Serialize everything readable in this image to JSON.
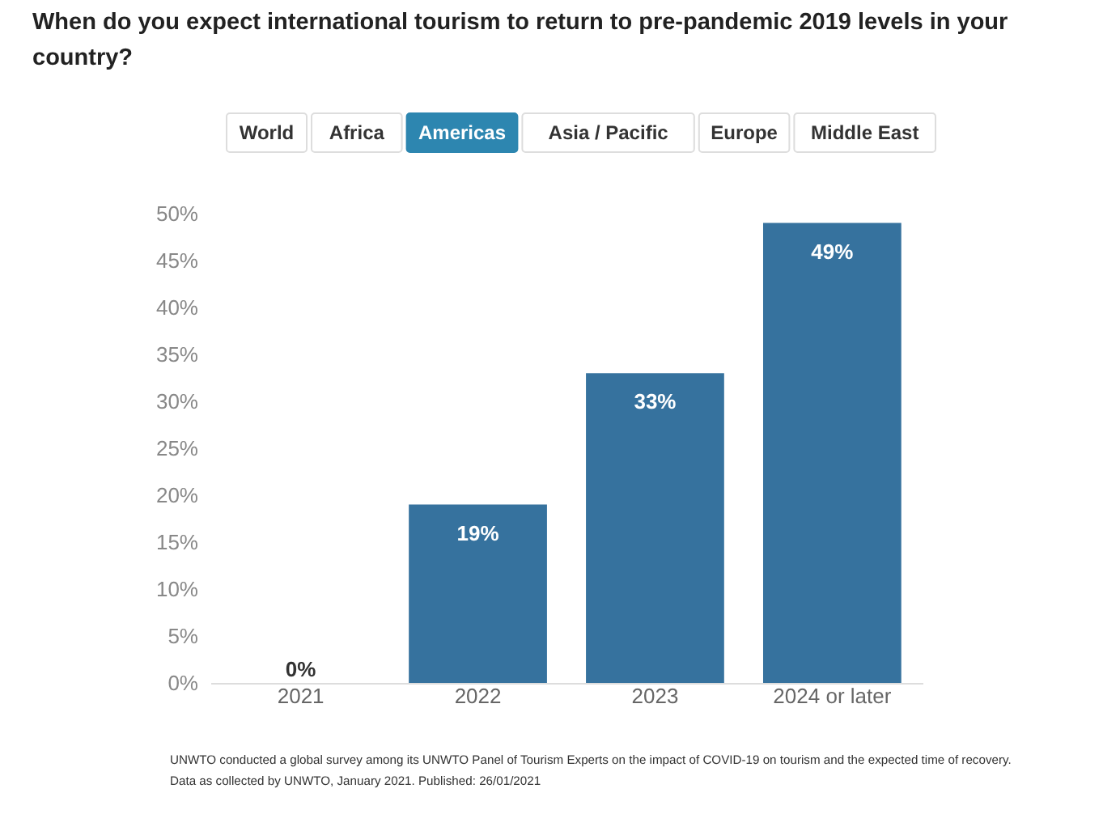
{
  "chart_data": {
    "type": "bar",
    "title": "When do you expect international tourism to return to pre-pandemic 2019 levels in your country?",
    "categories": [
      "2021",
      "2022",
      "2023",
      "2024 or later"
    ],
    "values": [
      0,
      19,
      33,
      49
    ],
    "value_labels": [
      "0%",
      "19%",
      "33%",
      "49%"
    ],
    "color": "#36729e",
    "ylim": [
      0,
      50
    ],
    "yticks": [
      {
        "value": 0,
        "label": "0%"
      },
      {
        "value": 5,
        "label": "5%"
      },
      {
        "value": 10,
        "label": "10%"
      },
      {
        "value": 15,
        "label": "15%"
      },
      {
        "value": 20,
        "label": "20%"
      },
      {
        "value": 25,
        "label": "25%"
      },
      {
        "value": 30,
        "label": "30%"
      },
      {
        "value": 35,
        "label": "35%"
      },
      {
        "value": 40,
        "label": "40%"
      },
      {
        "value": 45,
        "label": "45%"
      },
      {
        "value": 50,
        "label": "50%"
      }
    ],
    "grid": false,
    "annotations": [
      "World",
      "Africa",
      "Americas",
      "Asia / Pacific",
      "Europe",
      "Middle East",
      "UNWTO conducted a global survey among its UNWTO Panel of Tourism Experts on the impact of COVID-19 on tourism and the expected time of recovery.",
      "Data as collected by UNWTO, January 2021. Published: 26/01/2021"
    ]
  }
}
